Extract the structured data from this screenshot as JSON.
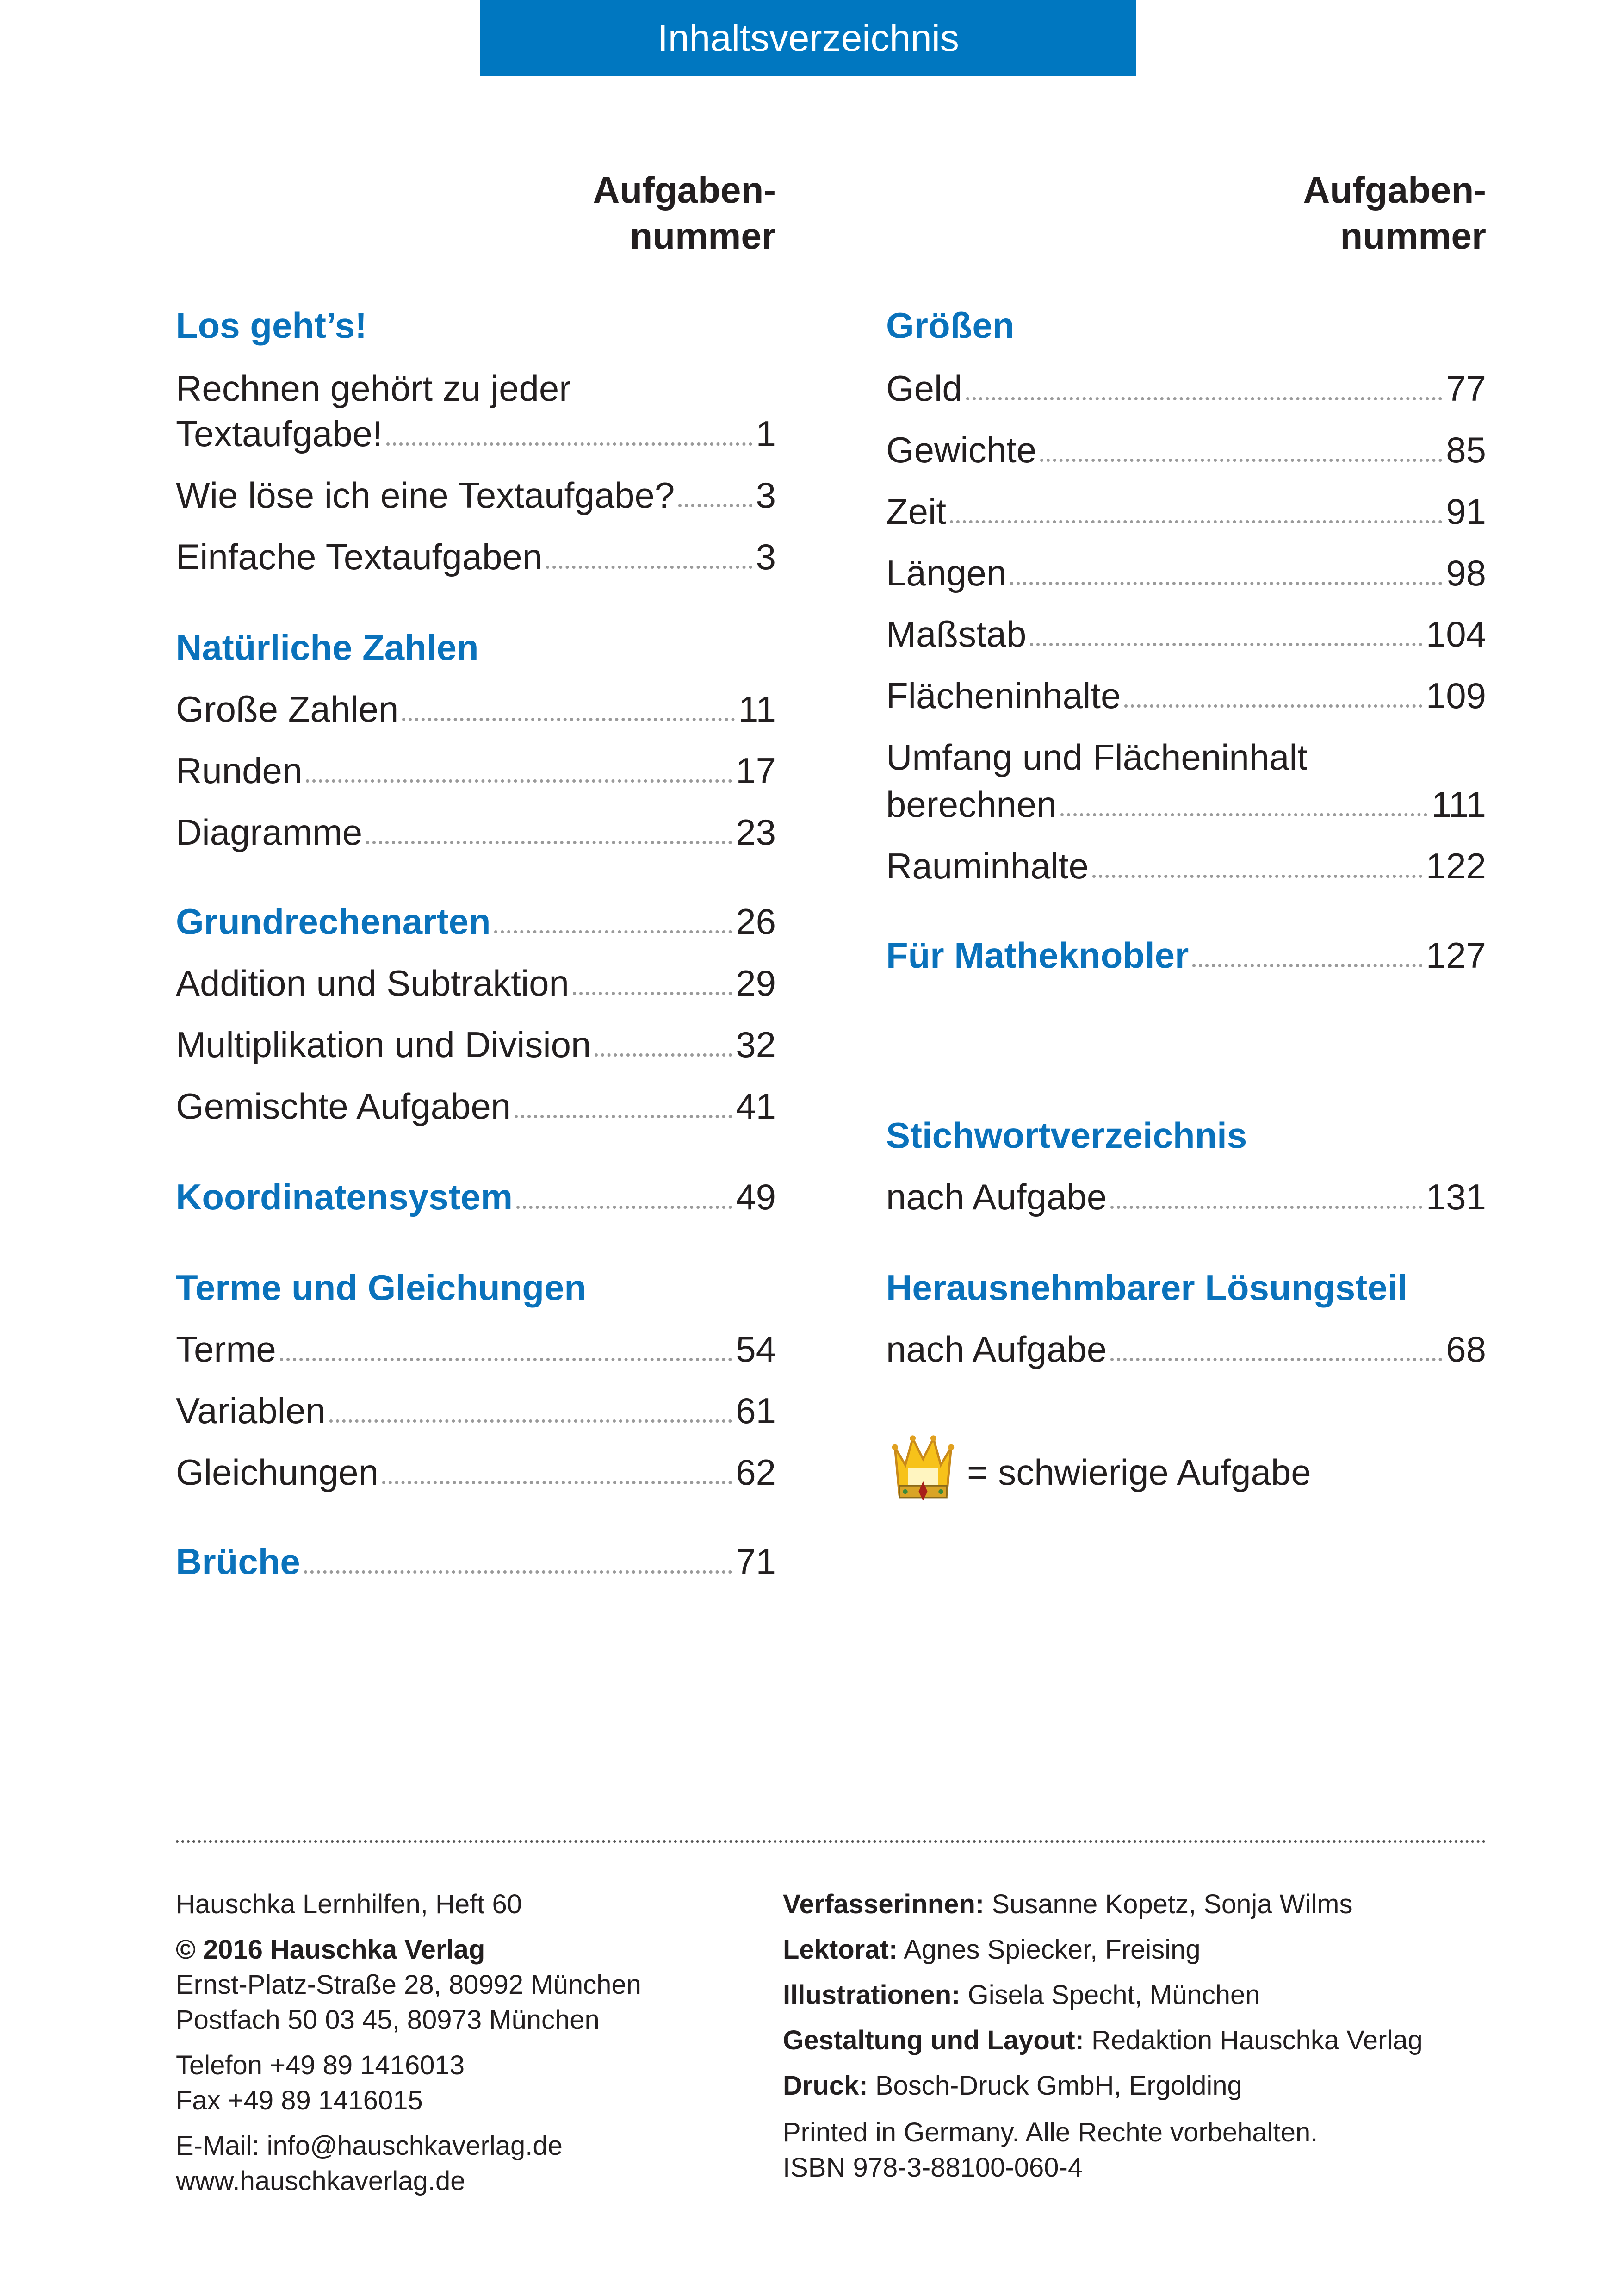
{
  "header": {
    "title": "Inhaltsverzeichnis"
  },
  "column_header": {
    "line1": "Aufgaben-",
    "line2": "nummer"
  },
  "left": {
    "s1": {
      "title": "Los geht’s!",
      "items": [
        {
          "label1": "Rechnen gehört zu jeder",
          "label2": "Textaufgabe!",
          "page": "1"
        },
        {
          "label": "Wie löse ich eine Textaufgabe?",
          "page": "3"
        },
        {
          "label": "Einfache Textaufgaben",
          "page": "3"
        }
      ]
    },
    "s2": {
      "title": "Natürliche Zahlen",
      "items": [
        {
          "label": "Große Zahlen",
          "page": "11"
        },
        {
          "label": "Runden",
          "page": "17"
        },
        {
          "label": "Diagramme",
          "page": "23"
        }
      ]
    },
    "s3": {
      "title": "Grundrechenarten",
      "page": "26",
      "items": [
        {
          "label": "Addition und Subtraktion",
          "page": "29"
        },
        {
          "label": "Multiplikation und Division",
          "page": "32"
        },
        {
          "label": "Gemischte Aufgaben",
          "page": "41"
        }
      ]
    },
    "s4": {
      "title": "Koordinatensystem",
      "page": "49"
    },
    "s5": {
      "title": "Terme und Gleichungen",
      "items": [
        {
          "label": "Terme",
          "page": "54"
        },
        {
          "label": "Variablen",
          "page": "61"
        },
        {
          "label": "Gleichungen",
          "page": "62"
        }
      ]
    },
    "s6": {
      "title": "Brüche",
      "page": "71"
    }
  },
  "right": {
    "s1": {
      "title": "Größen",
      "items": [
        {
          "label": "Geld",
          "page": "77"
        },
        {
          "label": "Gewichte",
          "page": "85"
        },
        {
          "label": "Zeit",
          "page": "91"
        },
        {
          "label": "Längen",
          "page": "98"
        },
        {
          "label": "Maßstab",
          "page": "104"
        },
        {
          "label": "Flächeninhalte",
          "page": "109"
        },
        {
          "label1": "Umfang und Flächeninhalt",
          "label2": "berechnen",
          "page": "111"
        },
        {
          "label": "Rauminhalte",
          "page": "122"
        }
      ]
    },
    "s2": {
      "title": "Für Matheknobler",
      "page": "127"
    },
    "s3": {
      "title": "Stichwortverzeichnis",
      "items": [
        {
          "label": "nach Aufgabe",
          "page": "131"
        }
      ]
    },
    "s4": {
      "title": "Herausnehmbarer Lösungsteil",
      "items": [
        {
          "label": "nach Aufgabe",
          "page": "68"
        }
      ]
    },
    "legend": {
      "icon": "crown-icon",
      "text": "= schwierige Aufgabe"
    }
  },
  "imprint": {
    "left": [
      "Hauschka Lernhilfen, Heft 60",
      "© 2016 Hauschka Verlag",
      "Ernst-Platz-Straße 28, 80992 München",
      "Postfach 50 03 45, 80973 München",
      "Telefon +49 89 1416013",
      "Fax +49 89 1416015",
      "E-Mail: info@hauschkaverlag.de",
      "www.hauschkaverlag.de"
    ],
    "right": [
      {
        "key": "Verfasserinnen:",
        "value": "Susanne Kopetz, Sonja Wilms"
      },
      {
        "key": "Lektorat:",
        "value": "Agnes Spiecker, Freising"
      },
      {
        "key": "Illustrationen:",
        "value": "Gisela Specht, München"
      },
      {
        "key": "Gestaltung und Layout:",
        "value": "Redaktion Hauschka Verlag"
      },
      {
        "key": "Druck:",
        "value": "Bosch-Druck GmbH, Ergolding"
      }
    ],
    "printed": "Printed in Germany. Alle Rechte vorbehalten.",
    "isbn": "ISBN 978-3-88100-060-4"
  },
  "colors": {
    "accent": "#0077c0",
    "heading": "#0a72bb",
    "text": "#231f20"
  }
}
